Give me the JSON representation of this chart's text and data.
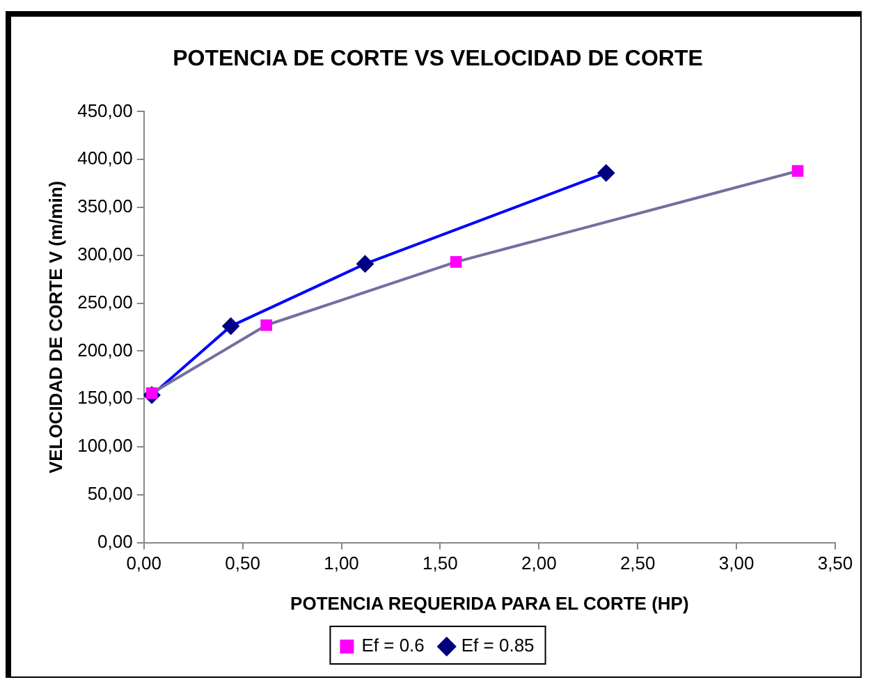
{
  "chart_data": {
    "type": "line",
    "title": "POTENCIA DE CORTE VS VELOCIDAD DE CORTE",
    "xlabel": "POTENCIA REQUERIDA PARA EL CORTE (HP)",
    "ylabel": "VELOCIDAD DE CORTE V (m/min)",
    "series": [
      {
        "name": "Ef = 0.85",
        "color": "#0000ff",
        "colors": [
          "#000080",
          "#000080",
          "#000080",
          "#000080"
        ],
        "marker": "diamond",
        "x": [
          0.04,
          0.44,
          1.12,
          2.34
        ],
        "values": [
          154,
          226,
          291,
          386
        ]
      },
      {
        "name": "Ef = 0.6",
        "color": "#7070a0",
        "colors": [
          "#ff00ff",
          "#ff00ff",
          "#ff00ff",
          "#ff00ff"
        ],
        "marker": "square",
        "x": [
          0.04,
          0.62,
          1.58,
          3.31
        ],
        "values": [
          156,
          227,
          293,
          388
        ]
      }
    ],
    "xlim": [
      0,
      3.5
    ],
    "xticks": [
      {
        "value": 0,
        "label": "0,00"
      },
      {
        "value": 0.5,
        "label": "0,50"
      },
      {
        "value": 1,
        "label": "1,00"
      },
      {
        "value": 1.5,
        "label": "1,50"
      },
      {
        "value": 2,
        "label": "2,00"
      },
      {
        "value": 2.5,
        "label": "2,50"
      },
      {
        "value": 3,
        "label": "3,00"
      },
      {
        "value": 3.5,
        "label": "3,50"
      }
    ],
    "ylim": [
      0,
      450
    ],
    "yticks": [
      {
        "value": 0,
        "label": "0,00"
      },
      {
        "value": 50,
        "label": "50,00"
      },
      {
        "value": 100,
        "label": "100,00"
      },
      {
        "value": 150,
        "label": "150,00"
      },
      {
        "value": 200,
        "label": "200,00"
      },
      {
        "value": 250,
        "label": "250,00"
      },
      {
        "value": 300,
        "label": "300,00"
      },
      {
        "value": 350,
        "label": "350,00"
      },
      {
        "value": 400,
        "label": "400,00"
      },
      {
        "value": 450,
        "label": "450,00"
      }
    ],
    "grid": false,
    "legend": "bottom",
    "line_style": "solid"
  }
}
